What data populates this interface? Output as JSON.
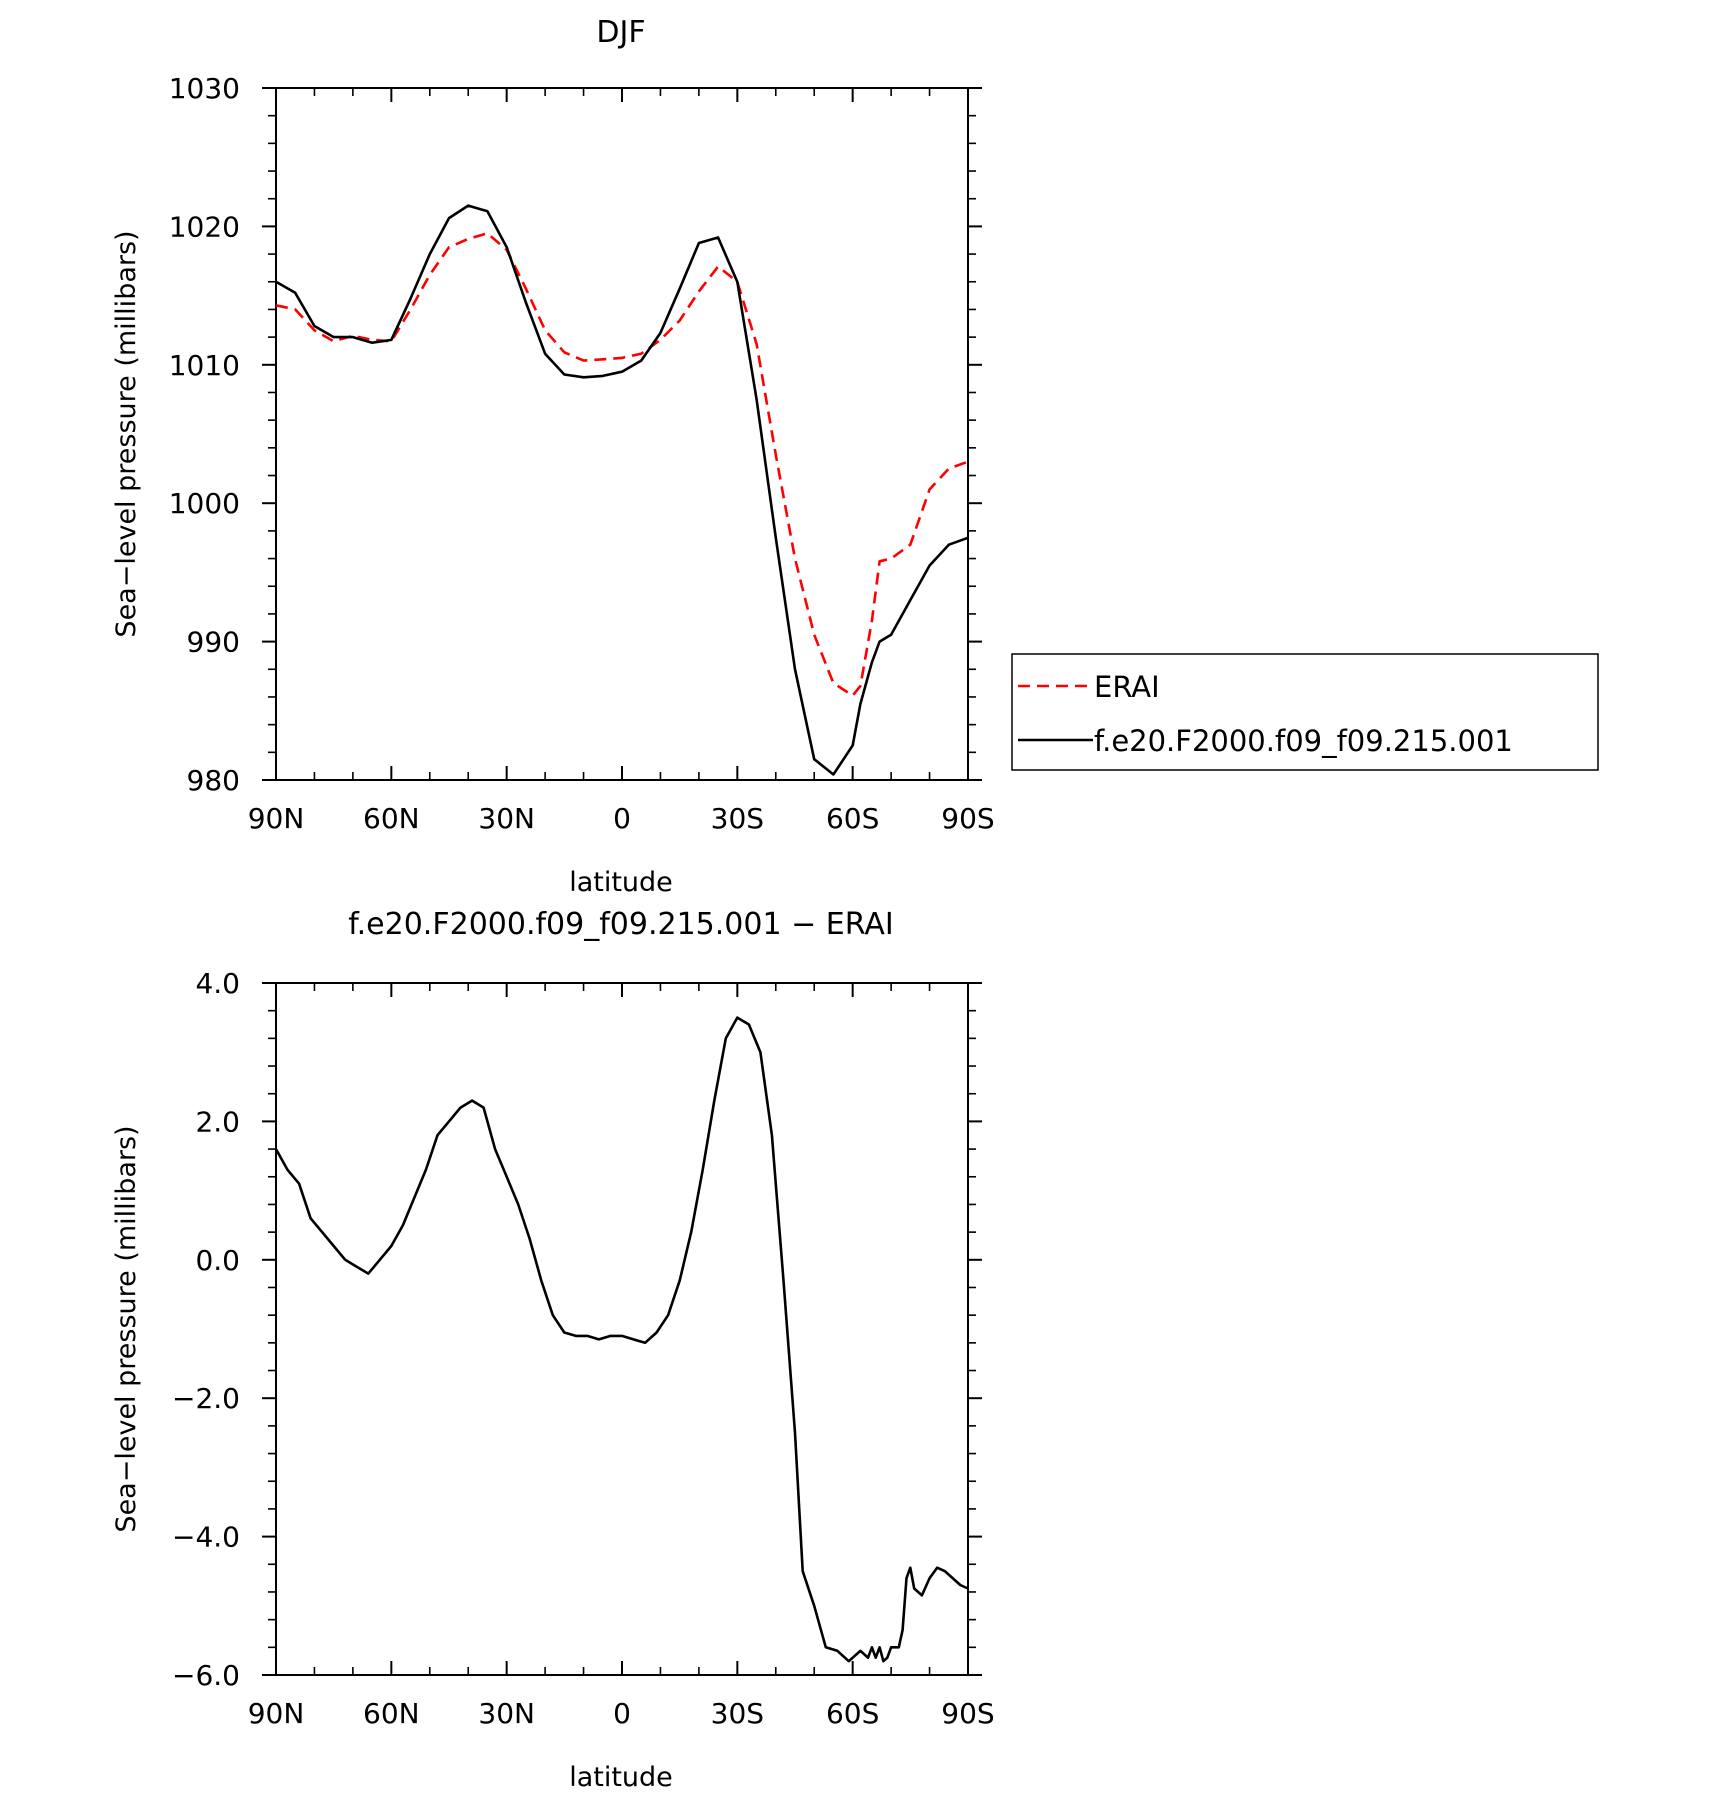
{
  "chart_data": [
    {
      "type": "line",
      "title": "DJF",
      "xlabel": "latitude",
      "ylabel": "Sea−level pressure (millibars)",
      "xlim": [
        90,
        -90
      ],
      "ylim": [
        980,
        1030
      ],
      "xticks": [
        90,
        60,
        30,
        0,
        -30,
        -60,
        -90
      ],
      "xtick_labels": [
        "90N",
        "60N",
        "30N",
        "0",
        "30S",
        "60S",
        "90S"
      ],
      "yticks": [
        980,
        990,
        1000,
        1010,
        1020,
        1030
      ],
      "ytick_labels": [
        "980",
        "990",
        "1000",
        "1010",
        "1020",
        "1030"
      ],
      "grid": false,
      "legend_position": "outside-right",
      "series": [
        {
          "name": "ERAI",
          "color": "#ff0000",
          "dash": "dashed",
          "x": [
            90,
            85,
            80,
            75,
            70,
            65,
            60,
            55,
            50,
            45,
            40,
            35,
            30,
            25,
            20,
            15,
            10,
            5,
            0,
            -5,
            -10,
            -15,
            -20,
            -25,
            -30,
            -35,
            -40,
            -45,
            -50,
            -55,
            -60,
            -62,
            -65,
            -67,
            -70,
            -75,
            -80,
            -85,
            -90
          ],
          "y": [
            1014.3,
            1014.0,
            1012.5,
            1011.7,
            1012.1,
            1011.8,
            1011.7,
            1014.0,
            1016.5,
            1018.5,
            1019.1,
            1019.5,
            1018.3,
            1015.5,
            1012.5,
            1010.9,
            1010.3,
            1010.4,
            1010.5,
            1010.8,
            1011.8,
            1013.2,
            1015.3,
            1017.1,
            1016.0,
            1011.5,
            1003.5,
            996.0,
            990.5,
            987.0,
            986.1,
            986.8,
            991.5,
            995.8,
            996.0,
            997.0,
            1001.0,
            1002.5,
            1003.0
          ]
        },
        {
          "name": "f.e20.F2000.f09_f09.215.001",
          "color": "#000000",
          "dash": "solid",
          "x": [
            90,
            85,
            80,
            75,
            70,
            65,
            60,
            55,
            50,
            45,
            40,
            35,
            30,
            25,
            20,
            15,
            10,
            5,
            0,
            -5,
            -10,
            -15,
            -20,
            -25,
            -30,
            -35,
            -40,
            -45,
            -50,
            -55,
            -60,
            -62,
            -65,
            -67,
            -70,
            -75,
            -80,
            -85,
            -90
          ],
          "y": [
            1016.0,
            1015.2,
            1012.8,
            1012.0,
            1012.0,
            1011.6,
            1011.8,
            1014.8,
            1018.0,
            1020.6,
            1021.5,
            1021.1,
            1018.5,
            1014.5,
            1010.8,
            1009.3,
            1009.1,
            1009.2,
            1009.5,
            1010.3,
            1012.3,
            1015.5,
            1018.8,
            1019.2,
            1016.0,
            1007.5,
            997.5,
            988.0,
            981.5,
            980.4,
            982.5,
            985.5,
            988.5,
            990.0,
            990.5,
            993.0,
            995.5,
            997.0,
            997.5
          ]
        }
      ]
    },
    {
      "type": "line",
      "title": "f.e20.F2000.f09_f09.215.001 − ERAI",
      "xlabel": "latitude",
      "ylabel": "Sea−level pressure (millibars)",
      "xlim": [
        90,
        -90
      ],
      "ylim": [
        -6,
        4
      ],
      "xticks": [
        90,
        60,
        30,
        0,
        -30,
        -60,
        -90
      ],
      "xtick_labels": [
        "90N",
        "60N",
        "30N",
        "0",
        "30S",
        "60S",
        "90S"
      ],
      "yticks": [
        -6,
        -4,
        -2,
        0,
        2,
        4
      ],
      "ytick_labels": [
        "−6.0",
        "−4.0",
        "−2.0",
        "0.0",
        "2.0",
        "4.0"
      ],
      "grid": false,
      "series": [
        {
          "color": "#000000",
          "dash": "solid",
          "x": [
            90,
            87,
            84,
            81,
            78,
            75,
            72,
            69,
            66,
            63,
            60,
            57,
            54,
            51,
            48,
            45,
            42,
            39,
            36,
            33,
            30,
            27,
            24,
            21,
            18,
            15,
            12,
            9,
            6,
            3,
            0,
            -3,
            -6,
            -9,
            -12,
            -15,
            -18,
            -21,
            -24,
            -27,
            -30,
            -33,
            -36,
            -39,
            -42,
            -45,
            -47,
            -50,
            -53,
            -56,
            -59,
            -62,
            -64,
            -65,
            -66,
            -67,
            -68,
            -69,
            -70,
            -72,
            -73,
            -74,
            -75,
            -76,
            -78,
            -80,
            -82,
            -84,
            -86,
            -88,
            -90
          ],
          "y": [
            1.6,
            1.3,
            1.1,
            0.6,
            0.4,
            0.2,
            0.0,
            -0.1,
            -0.2,
            0.0,
            0.2,
            0.5,
            0.9,
            1.3,
            1.8,
            2.0,
            2.2,
            2.3,
            2.2,
            1.6,
            1.2,
            0.8,
            0.3,
            -0.3,
            -0.8,
            -1.05,
            -1.1,
            -1.1,
            -1.15,
            -1.1,
            -1.1,
            -1.15,
            -1.2,
            -1.05,
            -0.8,
            -0.3,
            0.4,
            1.3,
            2.3,
            3.2,
            3.5,
            3.4,
            3.0,
            1.8,
            -0.3,
            -2.5,
            -4.5,
            -5.0,
            -5.6,
            -5.65,
            -5.8,
            -5.65,
            -5.75,
            -5.6,
            -5.75,
            -5.6,
            -5.8,
            -5.75,
            -5.6,
            -5.6,
            -5.35,
            -4.6,
            -4.45,
            -4.75,
            -4.85,
            -4.6,
            -4.45,
            -4.5,
            -4.6,
            -4.7,
            -4.75
          ]
        }
      ]
    }
  ]
}
